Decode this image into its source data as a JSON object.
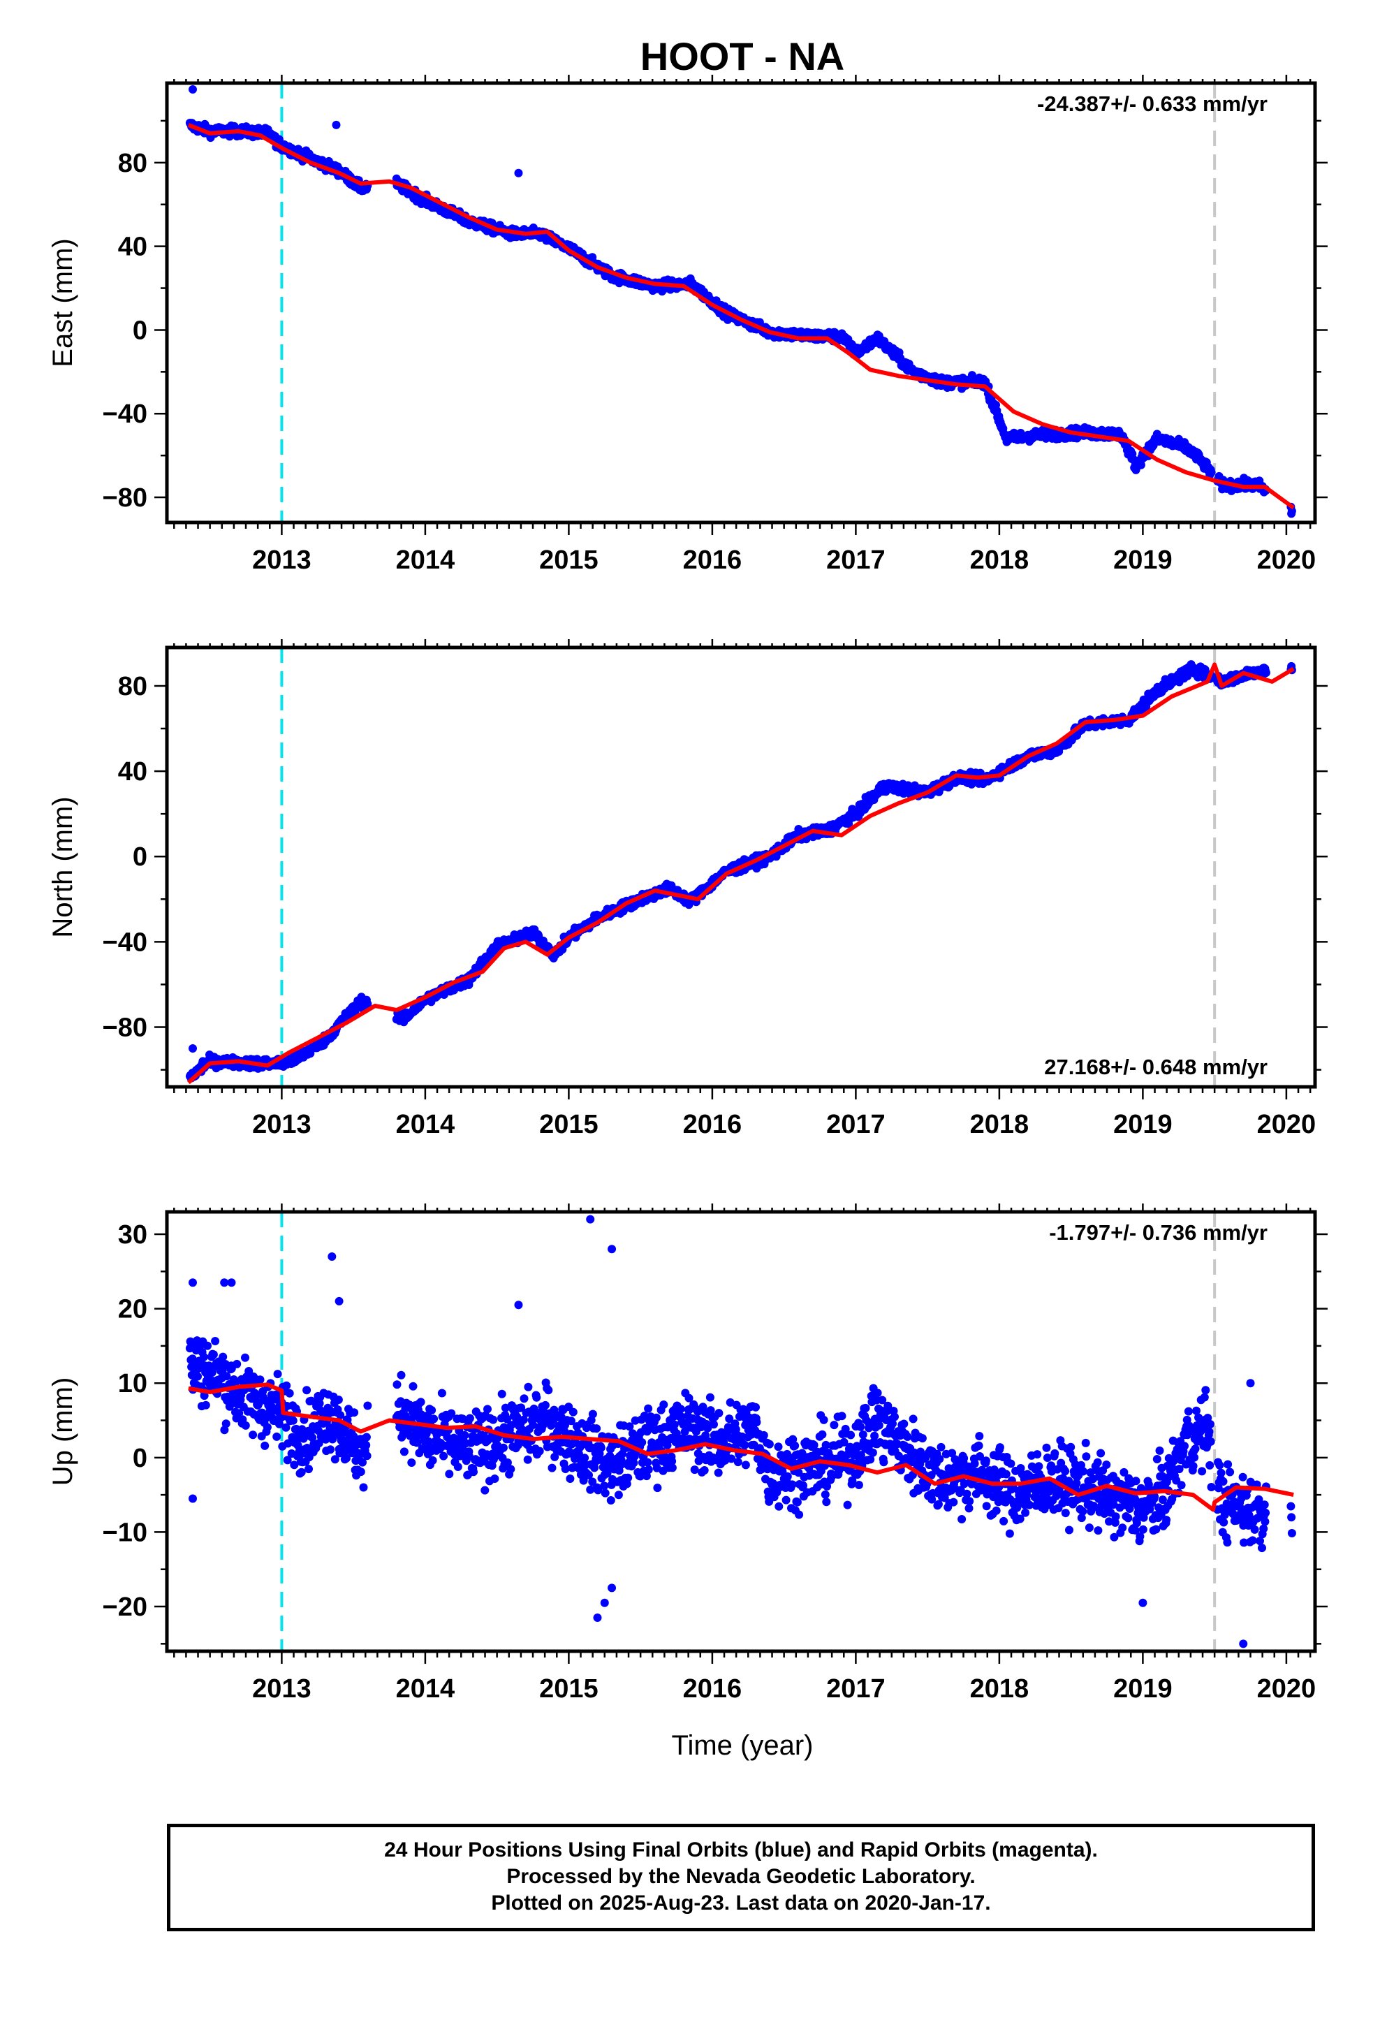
{
  "figure": {
    "title": "HOOT - NA",
    "xlabel": "Time (year)",
    "caption": [
      "24 Hour Positions Using Final Orbits (blue) and Rapid Orbits (magenta).",
      "Processed by the Nevada Geodetic Laboratory.",
      "Plotted on 2025-Aug-23. Last data on 2020-Jan-17."
    ],
    "colors": {
      "points": "#0000ff",
      "model": "#ff0000",
      "equipment_change": "#00e5ee",
      "data_gap_marker": "#c8c8c8",
      "frame": "#000000"
    }
  },
  "chart_data": [
    {
      "type": "scatter",
      "component": "East",
      "ylabel": "East (mm)",
      "xlim": [
        2012.2,
        2020.2
      ],
      "ylim": [
        -92,
        118
      ],
      "xticks": [
        "2013",
        "2014",
        "2015",
        "2016",
        "2017",
        "2018",
        "2019",
        "2020"
      ],
      "xtick_values": [
        2013,
        2014,
        2015,
        2016,
        2017,
        2018,
        2019,
        2020
      ],
      "yticks": [
        "−80",
        "−40",
        "0",
        "40",
        "80"
      ],
      "ytick_values": [
        -80,
        -40,
        0,
        40,
        80
      ],
      "rate_label": "-24.387+/- 0.633 mm/yr",
      "rate_position": "top-right",
      "vertical_lines": [
        {
          "x": 2013.0,
          "kind": "equipment_change"
        },
        {
          "x": 2019.5,
          "kind": "data_gap_marker"
        }
      ],
      "model": {
        "x": [
          2012.35,
          2012.5,
          2012.7,
          2012.85,
          2013.0,
          2013.2,
          2013.4,
          2013.55,
          2013.75,
          2013.9,
          2014.1,
          2014.3,
          2014.5,
          2014.7,
          2014.85,
          2015.0,
          2015.2,
          2015.4,
          2015.6,
          2015.8,
          2016.0,
          2016.2,
          2016.4,
          2016.6,
          2016.8,
          2016.95,
          2017.1,
          2017.3,
          2017.5,
          2017.7,
          2017.9,
          2018.1,
          2018.3,
          2018.5,
          2018.7,
          2018.9,
          2019.1,
          2019.3,
          2019.5,
          2019.7,
          2019.85,
          2020.05
        ],
        "y": [
          98,
          94,
          95,
          93,
          87,
          80,
          75,
          70,
          71,
          68,
          61,
          54,
          48,
          46,
          47,
          38,
          30,
          25,
          22,
          21,
          12,
          5,
          -1,
          -4,
          -4,
          -11,
          -19,
          -22,
          -24,
          -26,
          -27,
          -39,
          -45,
          -49,
          -51,
          -53,
          -62,
          -68,
          -72,
          -75,
          -75,
          -85
        ]
      },
      "series_trend": [
        [
          2012.35,
          98
        ],
        [
          2012.5,
          95
        ],
        [
          2012.7,
          95
        ],
        [
          2012.9,
          94
        ],
        [
          2013.0,
          88
        ],
        [
          2013.4,
          76
        ],
        [
          2013.55,
          68
        ],
        [
          2013.8,
          70
        ],
        [
          2014.0,
          62
        ],
        [
          2014.3,
          52
        ],
        [
          2014.6,
          46
        ],
        [
          2014.8,
          46
        ],
        [
          2015.0,
          39
        ],
        [
          2015.3,
          26
        ],
        [
          2015.6,
          21
        ],
        [
          2015.85,
          22
        ],
        [
          2016.1,
          8
        ],
        [
          2016.4,
          -1
        ],
        [
          2016.7,
          -3
        ],
        [
          2016.9,
          -3
        ],
        [
          2017.0,
          -11
        ],
        [
          2017.15,
          -4
        ],
        [
          2017.4,
          -20
        ],
        [
          2017.6,
          -25
        ],
        [
          2017.9,
          -25
        ],
        [
          2018.05,
          -52
        ],
        [
          2018.3,
          -50
        ],
        [
          2018.6,
          -49
        ],
        [
          2018.85,
          -50
        ],
        [
          2018.95,
          -65
        ],
        [
          2019.1,
          -52
        ],
        [
          2019.3,
          -56
        ],
        [
          2019.4,
          -62
        ],
        [
          2019.55,
          -74
        ],
        [
          2019.8,
          -74
        ],
        [
          2020.05,
          -87
        ]
      ],
      "outliers": [
        [
          2012.38,
          115
        ],
        [
          2013.38,
          98
        ],
        [
          2014.65,
          75
        ]
      ]
    },
    {
      "type": "scatter",
      "component": "North",
      "ylabel": "North (mm)",
      "xlim": [
        2012.2,
        2020.2
      ],
      "ylim": [
        -108,
        98
      ],
      "xticks": [
        "2013",
        "2014",
        "2015",
        "2016",
        "2017",
        "2018",
        "2019",
        "2020"
      ],
      "xtick_values": [
        2013,
        2014,
        2015,
        2016,
        2017,
        2018,
        2019,
        2020
      ],
      "yticks": [
        "−80",
        "−40",
        "0",
        "40",
        "80"
      ],
      "ytick_values": [
        -80,
        -40,
        0,
        40,
        80
      ],
      "rate_label": "27.168+/- 0.648 mm/yr",
      "rate_position": "bottom-right",
      "vertical_lines": [
        {
          "x": 2013.0,
          "kind": "equipment_change"
        },
        {
          "x": 2019.5,
          "kind": "data_gap_marker"
        }
      ],
      "model": {
        "x": [
          2012.35,
          2012.5,
          2012.7,
          2012.9,
          2013.05,
          2013.25,
          2013.45,
          2013.65,
          2013.8,
          2014.0,
          2014.2,
          2014.4,
          2014.55,
          2014.7,
          2014.85,
          2015.0,
          2015.2,
          2015.4,
          2015.6,
          2015.75,
          2015.9,
          2016.1,
          2016.3,
          2016.5,
          2016.7,
          2016.9,
          2017.1,
          2017.3,
          2017.5,
          2017.7,
          2017.85,
          2018.0,
          2018.2,
          2018.4,
          2018.6,
          2018.8,
          2019.0,
          2019.2,
          2019.45,
          2019.5,
          2019.55,
          2019.7,
          2019.9,
          2020.05
        ],
        "y": [
          -106,
          -97,
          -96,
          -98,
          -92,
          -85,
          -78,
          -70,
          -72,
          -66,
          -59,
          -54,
          -43,
          -40,
          -46,
          -38,
          -31,
          -22,
          -16,
          -18,
          -20,
          -8,
          -2,
          5,
          12,
          10,
          19,
          25,
          30,
          38,
          37,
          38,
          47,
          53,
          63,
          64,
          66,
          75,
          82,
          90,
          80,
          86,
          82,
          88
        ]
      },
      "series_trend": [
        [
          2012.35,
          -104
        ],
        [
          2012.5,
          -96
        ],
        [
          2012.8,
          -97
        ],
        [
          2013.0,
          -97
        ],
        [
          2013.1,
          -95
        ],
        [
          2013.3,
          -86
        ],
        [
          2013.55,
          -68
        ],
        [
          2013.85,
          -76
        ],
        [
          2014.0,
          -67
        ],
        [
          2014.3,
          -58
        ],
        [
          2014.5,
          -42
        ],
        [
          2014.75,
          -36
        ],
        [
          2014.9,
          -46
        ],
        [
          2015.0,
          -38
        ],
        [
          2015.2,
          -29
        ],
        [
          2015.5,
          -20
        ],
        [
          2015.7,
          -15
        ],
        [
          2015.85,
          -21
        ],
        [
          2016.1,
          -7
        ],
        [
          2016.4,
          0
        ],
        [
          2016.6,
          10
        ],
        [
          2016.8,
          12
        ],
        [
          2017.0,
          20
        ],
        [
          2017.2,
          33
        ],
        [
          2017.5,
          30
        ],
        [
          2017.7,
          37
        ],
        [
          2017.9,
          36
        ],
        [
          2018.2,
          47
        ],
        [
          2018.4,
          50
        ],
        [
          2018.6,
          62
        ],
        [
          2018.9,
          64
        ],
        [
          2019.1,
          78
        ],
        [
          2019.35,
          88
        ],
        [
          2019.55,
          82
        ],
        [
          2019.8,
          87
        ],
        [
          2020.05,
          88
        ]
      ],
      "outliers": [
        [
          2012.38,
          -90
        ],
        [
          2012.45,
          -96
        ]
      ]
    },
    {
      "type": "scatter",
      "component": "Up",
      "ylabel": "Up (mm)",
      "xlim": [
        2012.2,
        2020.2
      ],
      "ylim": [
        -26,
        33
      ],
      "xticks": [
        "2013",
        "2014",
        "2015",
        "2016",
        "2017",
        "2018",
        "2019",
        "2020"
      ],
      "xtick_values": [
        2013,
        2014,
        2015,
        2016,
        2017,
        2018,
        2019,
        2020
      ],
      "yticks": [
        "−20",
        "−10",
        "0",
        "10",
        "20",
        "30"
      ],
      "ytick_values": [
        -20,
        -10,
        0,
        10,
        20,
        30
      ],
      "rate_label": "-1.797+/- 0.736 mm/yr",
      "rate_position": "top-right",
      "vertical_lines": [
        {
          "x": 2013.0,
          "kind": "equipment_change"
        },
        {
          "x": 2019.5,
          "kind": "data_gap_marker"
        }
      ],
      "model": {
        "x": [
          2012.35,
          2012.5,
          2012.7,
          2012.9,
          2013.0,
          2013.01,
          2013.2,
          2013.4,
          2013.55,
          2013.75,
          2013.95,
          2014.15,
          2014.35,
          2014.55,
          2014.75,
          2014.95,
          2015.15,
          2015.35,
          2015.55,
          2015.75,
          2015.95,
          2016.15,
          2016.35,
          2016.55,
          2016.75,
          2016.95,
          2017.15,
          2017.35,
          2017.55,
          2017.75,
          2017.95,
          2018.15,
          2018.35,
          2018.55,
          2018.75,
          2018.95,
          2019.15,
          2019.35,
          2019.49,
          2019.5,
          2019.65,
          2019.85,
          2020.05
        ],
        "y": [
          9.3,
          8.8,
          9.5,
          9.8,
          9.0,
          6.0,
          5.5,
          5.0,
          3.5,
          5.0,
          4.5,
          4.0,
          4.2,
          3.0,
          2.5,
          2.8,
          2.5,
          2.2,
          0.5,
          1.0,
          1.8,
          1.0,
          0.5,
          -1.5,
          -0.5,
          -1.0,
          -2.0,
          -1.0,
          -3.5,
          -2.5,
          -3.5,
          -3.5,
          -2.8,
          -5.0,
          -3.8,
          -4.8,
          -4.5,
          -5.0,
          -7.0,
          -6.0,
          -4.0,
          -4.2,
          -5.0
        ]
      },
      "series_trend": [
        [
          2012.35,
          13
        ],
        [
          2012.55,
          11
        ],
        [
          2012.75,
          8
        ],
        [
          2013.0,
          6
        ],
        [
          2013.15,
          3
        ],
        [
          2013.35,
          6
        ],
        [
          2013.55,
          0
        ],
        [
          2013.8,
          7
        ],
        [
          2014.0,
          3
        ],
        [
          2014.3,
          1
        ],
        [
          2014.6,
          3
        ],
        [
          2014.85,
          5
        ],
        [
          2015.1,
          1
        ],
        [
          2015.3,
          -1
        ],
        [
          2015.6,
          2
        ],
        [
          2015.85,
          4
        ],
        [
          2016.05,
          2
        ],
        [
          2016.3,
          4
        ],
        [
          2016.4,
          -2
        ],
        [
          2016.7,
          -1
        ],
        [
          2016.95,
          0
        ],
        [
          2017.15,
          5
        ],
        [
          2017.35,
          1
        ],
        [
          2017.6,
          -3
        ],
        [
          2017.85,
          -2
        ],
        [
          2018.1,
          -5
        ],
        [
          2018.35,
          -3
        ],
        [
          2018.6,
          -4
        ],
        [
          2018.85,
          -6
        ],
        [
          2019.0,
          -7
        ],
        [
          2019.15,
          -5
        ],
        [
          2019.3,
          2
        ],
        [
          2019.45,
          4
        ],
        [
          2019.55,
          -6
        ],
        [
          2019.75,
          -7
        ],
        [
          2020.05,
          -8
        ]
      ],
      "outliers": [
        [
          2012.38,
          23.5
        ],
        [
          2012.38,
          -5.5
        ],
        [
          2012.6,
          23.5
        ],
        [
          2012.65,
          23.5
        ],
        [
          2013.35,
          27
        ],
        [
          2013.4,
          21
        ],
        [
          2014.65,
          20.5
        ],
        [
          2015.15,
          32
        ],
        [
          2015.3,
          28
        ],
        [
          2015.2,
          -21.5
        ],
        [
          2015.25,
          -19.5
        ],
        [
          2015.3,
          -17.5
        ],
        [
          2019.0,
          -19.5
        ],
        [
          2019.7,
          -25
        ],
        [
          2019.75,
          10
        ]
      ]
    }
  ]
}
